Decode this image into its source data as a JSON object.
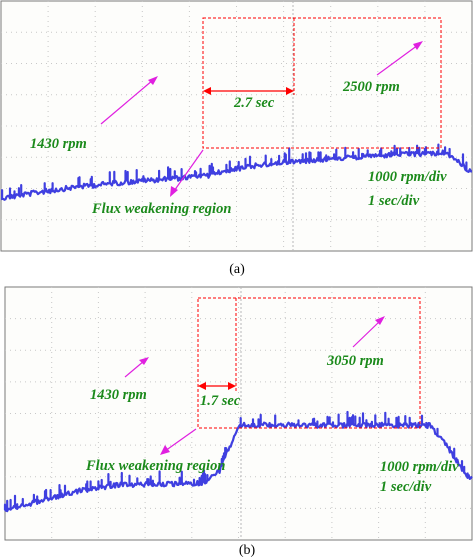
{
  "colors": {
    "trace": "#3f3fe0",
    "annotation_text": "#1b8a1b",
    "arrow": "#e020e0",
    "region_box": "#ff0000",
    "grid": "#c8c8c8",
    "screen_bg": "#fdfdfb"
  },
  "chart_data": [
    {
      "type": "line",
      "panel_label": "(a)",
      "x_unit": "sec",
      "y_unit": "rpm",
      "divisions": {
        "x": 10,
        "y": 8
      },
      "scale_text": [
        "1000 rpm/div",
        "1 sec/div"
      ],
      "series": [
        {
          "x": [
            0,
            0.8,
            1.6,
            2.4,
            3.2,
            4.0,
            4.4,
            4.7,
            5.2,
            6.0,
            7.0,
            8.0,
            9.4,
            9.8,
            10.0
          ],
          "y": [
            1050,
            1250,
            1420,
            1540,
            1640,
            1730,
            1780,
            1920,
            2060,
            2220,
            2330,
            2430,
            2520,
            2140,
            1850
          ]
        }
      ],
      "annotations": {
        "base_speed": "1430 rpm",
        "final_speed": "2500 rpm",
        "interval": "2.7 sec",
        "region": "Flux weakening region"
      }
    },
    {
      "type": "line",
      "panel_label": "(b)",
      "x_unit": "sec",
      "y_unit": "rpm",
      "divisions": {
        "x": 10,
        "y": 8
      },
      "scale_text": [
        "1000 rpm/div",
        "1 sec/div"
      ],
      "series": [
        {
          "x": [
            0,
            0.8,
            1.6,
            2.4,
            3.2,
            4.0,
            4.3,
            4.6,
            5.0,
            5.8,
            7.0,
            8.0,
            9.1,
            9.5,
            9.9,
            10.0
          ],
          "y": [
            300,
            630,
            950,
            1130,
            1150,
            1160,
            1220,
            1600,
            3050,
            3070,
            3050,
            3060,
            3050,
            2300,
            1400,
            1350
          ]
        }
      ],
      "annotations": {
        "base_speed": "1430 rpm",
        "final_speed": "3050 rpm",
        "interval": "1.7 sec",
        "region": "Flux weakening region"
      }
    }
  ]
}
